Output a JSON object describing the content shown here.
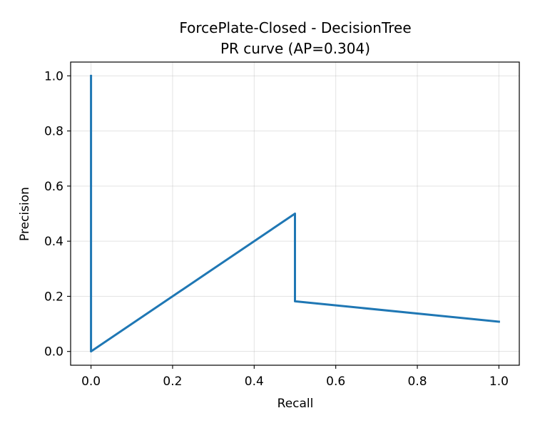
{
  "chart_data": {
    "type": "line",
    "title_line1": "ForcePlate-Closed - DecisionTree",
    "title_line2": "PR curve (AP=0.304)",
    "xlabel": "Recall",
    "ylabel": "Precision",
    "xlim": [
      -0.05,
      1.05
    ],
    "ylim": [
      -0.05,
      1.05
    ],
    "xticks": [
      0.0,
      0.2,
      0.4,
      0.6,
      0.8,
      1.0
    ],
    "yticks": [
      0.0,
      0.2,
      0.4,
      0.6,
      0.8,
      1.0
    ],
    "xtick_labels": [
      "0.0",
      "0.2",
      "0.4",
      "0.6",
      "0.8",
      "1.0"
    ],
    "ytick_labels": [
      "0.0",
      "0.2",
      "0.4",
      "0.6",
      "0.8",
      "1.0"
    ],
    "grid": true,
    "legend": false,
    "series": [
      {
        "color": "#1f77b4",
        "x": [
          0.0,
          0.0,
          0.5,
          0.5,
          1.0
        ],
        "y": [
          1.0,
          0.0,
          0.5,
          0.182,
          0.108
        ]
      }
    ]
  }
}
